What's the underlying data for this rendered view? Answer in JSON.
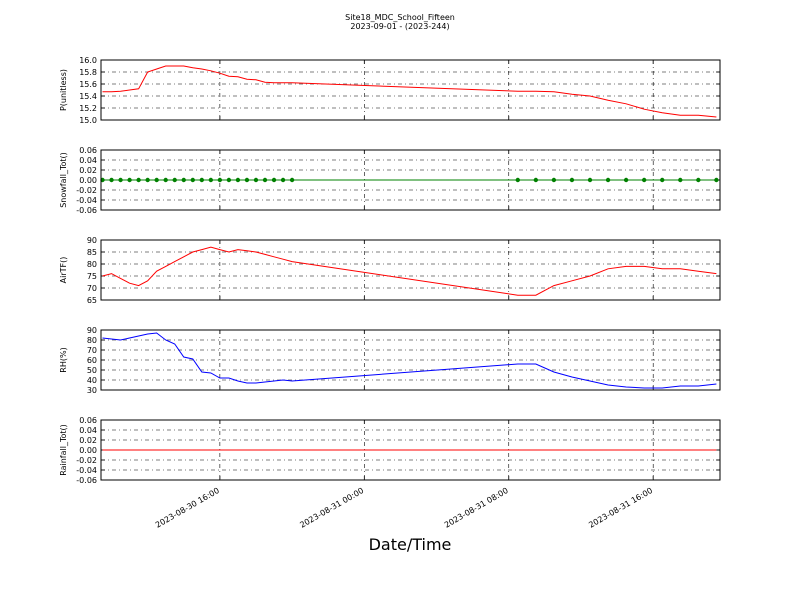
{
  "figure": {
    "title": "Site18_MDC_School_Fifteen",
    "subtitle": "2023-09-01 - (2023-244)",
    "x_label": "Date/Time"
  },
  "chart_data": [
    {
      "type": "line",
      "y_label": "P(unitless)",
      "x": [
        "2023-08-30 09:30",
        "2023-08-30 10:00",
        "2023-08-30 10:30",
        "2023-08-30 11:00",
        "2023-08-30 11:30",
        "2023-08-30 12:00",
        "2023-08-30 12:30",
        "2023-08-30 13:00",
        "2023-08-30 13:30",
        "2023-08-30 14:00",
        "2023-08-30 14:30",
        "2023-08-30 15:00",
        "2023-08-30 15:30",
        "2023-08-30 16:00",
        "2023-08-30 16:30",
        "2023-08-30 17:00",
        "2023-08-30 17:30",
        "2023-08-30 18:00",
        "2023-08-30 18:30",
        "2023-08-30 19:00",
        "2023-08-30 19:30",
        "2023-08-30 20:00",
        "2023-08-31 08:30",
        "2023-08-31 09:30",
        "2023-08-31 10:30",
        "2023-08-31 11:30",
        "2023-08-31 12:30",
        "2023-08-31 13:30",
        "2023-08-31 14:30",
        "2023-08-31 15:30",
        "2023-08-31 16:30",
        "2023-08-31 17:30",
        "2023-08-31 18:30",
        "2023-08-31 19:30"
      ],
      "series": [
        {
          "color": "#ff0000",
          "values": [
            15.47,
            15.47,
            15.48,
            15.5,
            15.52,
            15.8,
            15.85,
            15.9,
            15.9,
            15.9,
            15.87,
            15.85,
            15.82,
            15.78,
            15.73,
            15.72,
            15.68,
            15.67,
            15.63,
            15.62,
            15.62,
            15.62,
            15.48,
            15.48,
            15.47,
            15.43,
            15.4,
            15.33,
            15.27,
            15.18,
            15.12,
            15.08,
            15.08,
            15.05
          ]
        }
      ],
      "xlim": [
        "2023-08-30 09:25",
        "2023-08-31 19:42"
      ],
      "xticks": [
        "2023-08-30 16:00",
        "2023-08-31 00:00",
        "2023-08-31 08:00",
        "2023-08-31 16:00"
      ],
      "ylim": [
        15.0,
        16.0
      ],
      "yticks": [
        {
          "value": 15.0,
          "label": "15.0"
        },
        15.2,
        15.4,
        15.6,
        15.8,
        {
          "value": 16.0,
          "label": "16.0"
        }
      ],
      "grid": true
    },
    {
      "type": "line",
      "y_label": "Snowfall_Tot()",
      "markers": true,
      "x": [
        "2023-08-30 09:30",
        "2023-08-30 10:00",
        "2023-08-30 10:30",
        "2023-08-30 11:00",
        "2023-08-30 11:30",
        "2023-08-30 12:00",
        "2023-08-30 12:30",
        "2023-08-30 13:00",
        "2023-08-30 13:30",
        "2023-08-30 14:00",
        "2023-08-30 14:30",
        "2023-08-30 15:00",
        "2023-08-30 15:30",
        "2023-08-30 16:00",
        "2023-08-30 16:30",
        "2023-08-30 17:00",
        "2023-08-30 17:30",
        "2023-08-30 18:00",
        "2023-08-30 18:30",
        "2023-08-30 19:00",
        "2023-08-30 19:30",
        "2023-08-30 20:00",
        "2023-08-31 08:30",
        "2023-08-31 09:30",
        "2023-08-31 10:30",
        "2023-08-31 11:30",
        "2023-08-31 12:30",
        "2023-08-31 13:30",
        "2023-08-31 14:30",
        "2023-08-31 15:30",
        "2023-08-31 16:30",
        "2023-08-31 17:30",
        "2023-08-31 18:30",
        "2023-08-31 19:30"
      ],
      "series": [
        {
          "color": "#008000",
          "values": [
            0,
            0,
            0,
            0,
            0,
            0,
            0,
            0,
            0,
            0,
            0,
            0,
            0,
            0,
            0,
            0,
            0,
            0,
            0,
            0,
            0,
            0,
            0,
            0,
            0,
            0,
            0,
            0,
            0,
            0,
            0,
            0,
            0,
            0
          ]
        }
      ],
      "xlim": [
        "2023-08-30 09:25",
        "2023-08-31 19:42"
      ],
      "xticks": [
        "2023-08-30 16:00",
        "2023-08-31 00:00",
        "2023-08-31 08:00",
        "2023-08-31 16:00"
      ],
      "ylim": [
        -0.06,
        0.06
      ],
      "yticks": [
        -0.06,
        -0.04,
        -0.02,
        {
          "value": 0,
          "label": "0.00"
        },
        0.02,
        0.04,
        0.06
      ],
      "grid": true
    },
    {
      "type": "line",
      "y_label": "AirTF()",
      "x": [
        "2023-08-30 09:30",
        "2023-08-30 10:00",
        "2023-08-30 10:30",
        "2023-08-30 11:00",
        "2023-08-30 11:30",
        "2023-08-30 12:00",
        "2023-08-30 12:30",
        "2023-08-30 13:00",
        "2023-08-30 13:30",
        "2023-08-30 14:00",
        "2023-08-30 14:30",
        "2023-08-30 15:00",
        "2023-08-30 15:30",
        "2023-08-30 16:00",
        "2023-08-30 16:30",
        "2023-08-30 17:00",
        "2023-08-30 17:30",
        "2023-08-30 18:00",
        "2023-08-30 18:30",
        "2023-08-30 19:00",
        "2023-08-30 19:30",
        "2023-08-30 20:00",
        "2023-08-31 08:30",
        "2023-08-31 09:30",
        "2023-08-31 10:30",
        "2023-08-31 11:30",
        "2023-08-31 12:30",
        "2023-08-31 13:30",
        "2023-08-31 14:30",
        "2023-08-31 15:30",
        "2023-08-31 16:30",
        "2023-08-31 17:30",
        "2023-08-31 18:30",
        "2023-08-31 19:30"
      ],
      "series": [
        {
          "color": "#ff0000",
          "values": [
            75,
            76,
            74,
            72,
            71,
            73,
            77,
            79,
            81,
            83,
            85,
            86,
            87,
            86,
            85,
            86,
            85.5,
            85,
            84,
            83,
            82,
            81,
            67,
            67,
            71,
            73,
            75,
            78,
            79,
            79,
            78,
            78,
            77,
            76
          ]
        }
      ],
      "xlim": [
        "2023-08-30 09:25",
        "2023-08-31 19:42"
      ],
      "xticks": [
        "2023-08-30 16:00",
        "2023-08-31 00:00",
        "2023-08-31 08:00",
        "2023-08-31 16:00"
      ],
      "ylim": [
        65,
        90
      ],
      "yticks": [
        65,
        70,
        75,
        80,
        85,
        90
      ],
      "grid": true
    },
    {
      "type": "line",
      "y_label": "RH(%)",
      "x": [
        "2023-08-30 09:30",
        "2023-08-30 10:00",
        "2023-08-30 10:30",
        "2023-08-30 11:00",
        "2023-08-30 11:30",
        "2023-08-30 12:00",
        "2023-08-30 12:30",
        "2023-08-30 13:00",
        "2023-08-30 13:30",
        "2023-08-30 14:00",
        "2023-08-30 14:30",
        "2023-08-30 15:00",
        "2023-08-30 15:30",
        "2023-08-30 16:00",
        "2023-08-30 16:30",
        "2023-08-30 17:00",
        "2023-08-30 17:30",
        "2023-08-30 18:00",
        "2023-08-30 18:30",
        "2023-08-30 19:00",
        "2023-08-30 19:30",
        "2023-08-30 20:00",
        "2023-08-31 08:30",
        "2023-08-31 09:30",
        "2023-08-31 10:30",
        "2023-08-31 11:30",
        "2023-08-31 12:30",
        "2023-08-31 13:30",
        "2023-08-31 14:30",
        "2023-08-31 15:30",
        "2023-08-31 16:30",
        "2023-08-31 17:30",
        "2023-08-31 18:30",
        "2023-08-31 19:30"
      ],
      "series": [
        {
          "color": "#0000ff",
          "values": [
            82,
            81,
            80,
            82,
            84,
            86,
            87,
            80,
            76,
            63,
            61,
            48,
            47,
            42,
            42,
            39,
            37,
            37,
            38,
            39,
            40,
            39,
            56,
            56,
            48,
            43,
            39,
            35,
            33,
            32,
            32,
            34,
            34,
            36
          ]
        }
      ],
      "xlim": [
        "2023-08-30 09:25",
        "2023-08-31 19:42"
      ],
      "xticks": [
        "2023-08-30 16:00",
        "2023-08-31 00:00",
        "2023-08-31 08:00",
        "2023-08-31 16:00"
      ],
      "ylim": [
        30,
        90
      ],
      "yticks": [
        30,
        40,
        50,
        60,
        70,
        80,
        90
      ],
      "grid": true
    },
    {
      "type": "line",
      "y_label": "Rainfall_Tot()",
      "x": [
        "2023-08-30 09:30",
        "2023-08-30 10:00",
        "2023-08-30 10:30",
        "2023-08-30 11:00",
        "2023-08-30 11:30",
        "2023-08-30 12:00",
        "2023-08-30 12:30",
        "2023-08-30 13:00",
        "2023-08-30 13:30",
        "2023-08-30 14:00",
        "2023-08-30 14:30",
        "2023-08-30 15:00",
        "2023-08-30 15:30",
        "2023-08-30 16:00",
        "2023-08-30 16:30",
        "2023-08-30 17:00",
        "2023-08-30 17:30",
        "2023-08-30 18:00",
        "2023-08-30 18:30",
        "2023-08-30 19:00",
        "2023-08-30 19:30",
        "2023-08-30 20:00",
        "2023-08-31 08:30",
        "2023-08-31 09:30",
        "2023-08-31 10:30",
        "2023-08-31 11:30",
        "2023-08-31 12:30",
        "2023-08-31 13:30",
        "2023-08-31 14:30",
        "2023-08-31 15:30",
        "2023-08-31 16:30",
        "2023-08-31 17:30",
        "2023-08-31 18:30",
        "2023-08-31 19:30"
      ],
      "series": [
        {
          "color": "#ff0000",
          "values": [
            0,
            0,
            0,
            0,
            0,
            0,
            0,
            0,
            0,
            0,
            0,
            0,
            0,
            0,
            0,
            0,
            0,
            0,
            0,
            0,
            0,
            0,
            0,
            0,
            0,
            0,
            0,
            0,
            0,
            0,
            0,
            0,
            0,
            0
          ]
        }
      ],
      "xlim": [
        "2023-08-30 09:25",
        "2023-08-31 19:42"
      ],
      "xticks": [
        "2023-08-30 16:00",
        "2023-08-31 00:00",
        "2023-08-31 08:00",
        "2023-08-31 16:00"
      ],
      "ylim": [
        -0.06,
        0.06
      ],
      "yticks": [
        -0.06,
        -0.04,
        -0.02,
        {
          "value": 0,
          "label": "0.00"
        },
        0.02,
        0.04,
        0.06
      ],
      "grid": true,
      "show_xtick_labels": true
    }
  ]
}
